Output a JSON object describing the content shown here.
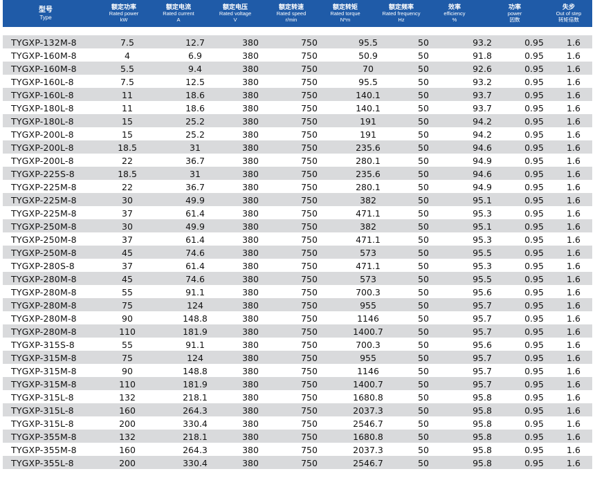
{
  "headers": [
    {
      "zh": "型号",
      "en": "Type",
      "unit": ""
    },
    {
      "zh": "额定功率",
      "en": "Rated power",
      "unit": "kW"
    },
    {
      "zh": "额定电流",
      "en": "Rated current",
      "unit": "A"
    },
    {
      "zh": "额定电压",
      "en": "Rated voltage",
      "unit": "V"
    },
    {
      "zh": "额定转速",
      "en": "Rated speed",
      "unit": "r/min"
    },
    {
      "zh": "额定转矩",
      "en": "Rated torque",
      "unit": "N*m"
    },
    {
      "zh": "额定频率",
      "en": "Rated frequency",
      "unit": "Hz"
    },
    {
      "zh": "效率",
      "en": "efficiency",
      "unit": "%"
    },
    {
      "zh": "功率",
      "en": "power",
      "unit": "因数"
    },
    {
      "zh": "失步",
      "en": "Out of step",
      "unit": "转矩倍数"
    }
  ],
  "rows": [
    [
      "TYGXP-132M-8",
      "7.5",
      "12.7",
      "380",
      "750",
      "95.5",
      "50",
      "93.2",
      "0.95",
      "1.6"
    ],
    [
      "TYGXP-160M-8",
      "4",
      "6.9",
      "380",
      "750",
      "50.9",
      "50",
      "91.8",
      "0.95",
      "1.6"
    ],
    [
      "TYGXP-160M-8",
      "5.5",
      "9.4",
      "380",
      "750",
      "70",
      "50",
      "92.6",
      "0.95",
      "1.6"
    ],
    [
      "TYGXP-160L-8",
      "7.5",
      "12.5",
      "380",
      "750",
      "95.5",
      "50",
      "93.2",
      "0.95",
      "1.6"
    ],
    [
      "TYGXP-160L-8",
      "11",
      "18.6",
      "380",
      "750",
      "140.1",
      "50",
      "93.7",
      "0.95",
      "1.6"
    ],
    [
      "TYGXP-180L-8",
      "11",
      "18.6",
      "380",
      "750",
      "140.1",
      "50",
      "93.7",
      "0.95",
      "1.6"
    ],
    [
      "TYGXP-180L-8",
      "15",
      "25.2",
      "380",
      "750",
      "191",
      "50",
      "94.2",
      "0.95",
      "1.6"
    ],
    [
      "TYGXP-200L-8",
      "15",
      "25.2",
      "380",
      "750",
      "191",
      "50",
      "94.2",
      "0.95",
      "1.6"
    ],
    [
      "TYGXP-200L-8",
      "18.5",
      "31",
      "380",
      "750",
      "235.6",
      "50",
      "94.6",
      "0.95",
      "1.6"
    ],
    [
      "TYGXP-200L-8",
      "22",
      "36.7",
      "380",
      "750",
      "280.1",
      "50",
      "94.9",
      "0.95",
      "1.6"
    ],
    [
      "TYGXP-225S-8",
      "18.5",
      "31",
      "380",
      "750",
      "235.6",
      "50",
      "94.6",
      "0.95",
      "1.6"
    ],
    [
      "TYGXP-225M-8",
      "22",
      "36.7",
      "380",
      "750",
      "280.1",
      "50",
      "94.9",
      "0.95",
      "1.6"
    ],
    [
      "TYGXP-225M-8",
      "30",
      "49.9",
      "380",
      "750",
      "382",
      "50",
      "95.1",
      "0.95",
      "1.6"
    ],
    [
      "TYGXP-225M-8",
      "37",
      "61.4",
      "380",
      "750",
      "471.1",
      "50",
      "95.3",
      "0.95",
      "1.6"
    ],
    [
      "TYGXP-250M-8",
      "30",
      "49.9",
      "380",
      "750",
      "382",
      "50",
      "95.1",
      "0.95",
      "1.6"
    ],
    [
      "TYGXP-250M-8",
      "37",
      "61.4",
      "380",
      "750",
      "471.1",
      "50",
      "95.3",
      "0.95",
      "1.6"
    ],
    [
      "TYGXP-250M-8",
      "45",
      "74.6",
      "380",
      "750",
      "573",
      "50",
      "95.5",
      "0.95",
      "1.6"
    ],
    [
      "TYGXP-280S-8",
      "37",
      "61.4",
      "380",
      "750",
      "471.1",
      "50",
      "95.3",
      "0.95",
      "1.6"
    ],
    [
      "TYGXP-280M-8",
      "45",
      "74.6",
      "380",
      "750",
      "573",
      "50",
      "95.5",
      "0.95",
      "1.6"
    ],
    [
      "TYGXP-280M-8",
      "55",
      "91.1",
      "380",
      "750",
      "700.3",
      "50",
      "95.6",
      "0.95",
      "1.6"
    ],
    [
      "TYGXP-280M-8",
      "75",
      "124",
      "380",
      "750",
      "955",
      "50",
      "95.7",
      "0.95",
      "1.6"
    ],
    [
      "TYGXP-280M-8",
      "90",
      "148.8",
      "380",
      "750",
      "1146",
      "50",
      "95.7",
      "0.95",
      "1.6"
    ],
    [
      "TYGXP-280M-8",
      "110",
      "181.9",
      "380",
      "750",
      "1400.7",
      "50",
      "95.7",
      "0.95",
      "1.6"
    ],
    [
      "TYGXP-315S-8",
      "55",
      "91.1",
      "380",
      "750",
      "700.3",
      "50",
      "95.6",
      "0.95",
      "1.6"
    ],
    [
      "TYGXP-315M-8",
      "75",
      "124",
      "380",
      "750",
      "955",
      "50",
      "95.7",
      "0.95",
      "1.6"
    ],
    [
      "TYGXP-315M-8",
      "90",
      "148.8",
      "380",
      "750",
      "1146",
      "50",
      "95.7",
      "0.95",
      "1.6"
    ],
    [
      "TYGXP-315M-8",
      "110",
      "181.9",
      "380",
      "750",
      "1400.7",
      "50",
      "95.7",
      "0.95",
      "1.6"
    ],
    [
      "TYGXP-315L-8",
      "132",
      "218.1",
      "380",
      "750",
      "1680.8",
      "50",
      "95.8",
      "0.95",
      "1.6"
    ],
    [
      "TYGXP-315L-8",
      "160",
      "264.3",
      "380",
      "750",
      "2037.3",
      "50",
      "95.8",
      "0.95",
      "1.6"
    ],
    [
      "TYGXP-315L-8",
      "200",
      "330.4",
      "380",
      "750",
      "2546.7",
      "50",
      "95.8",
      "0.95",
      "1.6"
    ],
    [
      "TYGXP-355M-8",
      "132",
      "218.1",
      "380",
      "750",
      "1680.8",
      "50",
      "95.8",
      "0.95",
      "1.6"
    ],
    [
      "TYGXP-355M-8",
      "160",
      "264.3",
      "380",
      "750",
      "2037.3",
      "50",
      "95.8",
      "0.95",
      "1.6"
    ],
    [
      "TYGXP-355L-8",
      "200",
      "330.4",
      "380",
      "750",
      "2546.7",
      "50",
      "95.8",
      "0.95",
      "1.6"
    ]
  ]
}
